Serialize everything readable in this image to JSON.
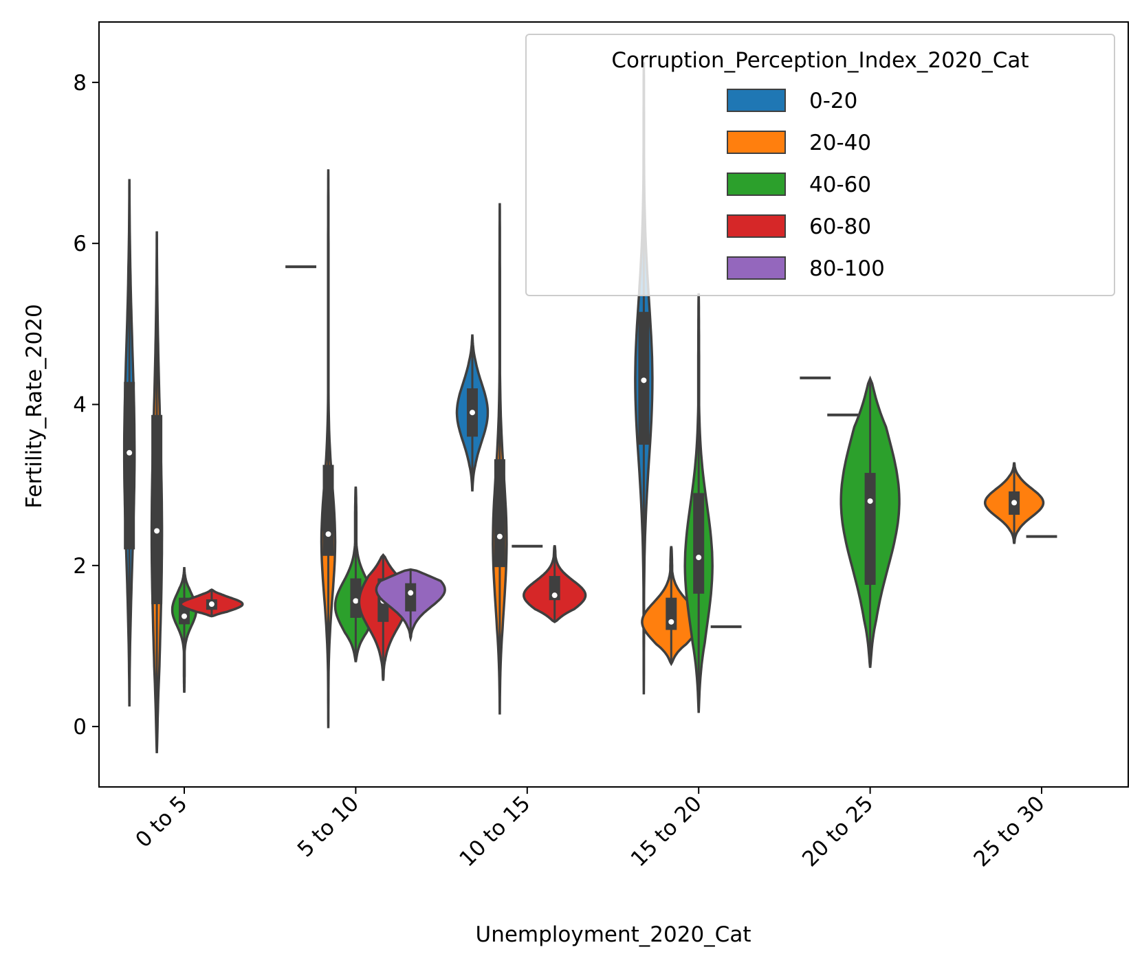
{
  "chart_data": {
    "type": "violin",
    "xlabel": "Unemployment_2020_Cat",
    "ylabel": "Fertility_Rate_2020",
    "categories": [
      "0 to 5",
      "5 to 10",
      "10 to 15",
      "15 to 20",
      "20 to 25",
      "25 to 30"
    ],
    "yticks": [
      "0",
      "2",
      "4",
      "6",
      "8"
    ],
    "ylim": [
      -0.75,
      8.75
    ],
    "legend": {
      "title": "Corruption_Perception_Index_2020_Cat",
      "placement": "top-right",
      "entries": [
        {
          "label": "0-20",
          "color": "#1f77b4"
        },
        {
          "label": "20-40",
          "color": "#ff7f0e"
        },
        {
          "label": "40-60",
          "color": "#2ca02c"
        },
        {
          "label": "60-80",
          "color": "#d62728"
        },
        {
          "label": "80-100",
          "color": "#9467bd"
        }
      ]
    },
    "hue_order": [
      "0-20",
      "20-40",
      "40-60",
      "60-80",
      "80-100"
    ],
    "violins": [
      {
        "category": "0 to 5",
        "hue": "0-20",
        "min": 0.25,
        "max": 6.8,
        "q1": 2.2,
        "median": 3.4,
        "q3": 4.28,
        "mode": 3.4,
        "width": 0.03
      },
      {
        "category": "0 to 5",
        "hue": "20-40",
        "min": -0.33,
        "max": 6.15,
        "q1": 1.52,
        "median": 2.43,
        "q3": 3.87,
        "mode": 2.4,
        "width": 0.03
      },
      {
        "category": "0 to 5",
        "hue": "40-60",
        "min": 0.42,
        "max": 1.98,
        "q1": 1.27,
        "median": 1.37,
        "q3": 1.6,
        "mode": 1.45,
        "width": 0.07
      },
      {
        "category": "0 to 5",
        "hue": "60-80",
        "min": 1.37,
        "max": 1.7,
        "q1": 1.45,
        "median": 1.52,
        "q3": 1.58,
        "mode": 1.52,
        "width": 0.18
      },
      {
        "category": "5 to 10",
        "hue": "0-20",
        "single": 5.71
      },
      {
        "category": "5 to 10",
        "hue": "20-40",
        "min": -0.02,
        "max": 6.92,
        "q1": 2.12,
        "median": 2.39,
        "q3": 3.25,
        "mode": 2.3,
        "width": 0.04
      },
      {
        "category": "5 to 10",
        "hue": "40-60",
        "min": 0.8,
        "max": 2.98,
        "q1": 1.35,
        "median": 1.56,
        "q3": 1.84,
        "mode": 1.5,
        "width": 0.12
      },
      {
        "category": "5 to 10",
        "hue": "60-80",
        "min": 0.57,
        "max": 2.13,
        "q1": 1.3,
        "median": 1.56,
        "q3": 1.84,
        "mode": 1.55,
        "width": 0.14
      },
      {
        "category": "5 to 10",
        "hue": "80-100",
        "min": 1.1,
        "max": 1.95,
        "q1": 1.43,
        "median": 1.66,
        "q3": 1.78,
        "mode": 1.7,
        "width": 0.2
      },
      {
        "category": "10 to 15",
        "hue": "0-20",
        "min": 2.92,
        "max": 4.87,
        "q1": 3.6,
        "median": 3.9,
        "q3": 4.2,
        "mode": 3.9,
        "width": 0.09
      },
      {
        "category": "10 to 15",
        "hue": "20-40",
        "min": 0.15,
        "max": 6.5,
        "q1": 1.98,
        "median": 2.36,
        "q3": 3.32,
        "mode": 2.3,
        "width": 0.04
      },
      {
        "category": "10 to 15",
        "hue": "40-60",
        "single": 2.24
      },
      {
        "category": "10 to 15",
        "hue": "60-80",
        "min": 1.3,
        "max": 2.25,
        "q1": 1.57,
        "median": 1.63,
        "q3": 1.87,
        "mode": 1.63,
        "width": 0.18
      },
      {
        "category": "15 to 20",
        "hue": "0-20",
        "min": 0.4,
        "max": 8.25,
        "q1": 3.5,
        "median": 4.3,
        "q3": 5.15,
        "mode": 4.3,
        "width": 0.05
      },
      {
        "category": "15 to 20",
        "hue": "20-40",
        "min": 0.78,
        "max": 2.24,
        "q1": 1.2,
        "median": 1.3,
        "q3": 1.6,
        "mode": 1.3,
        "width": 0.17
      },
      {
        "category": "15 to 20",
        "hue": "40-60",
        "min": 0.17,
        "max": 5.38,
        "q1": 1.65,
        "median": 2.1,
        "q3": 2.9,
        "mode": 2.0,
        "width": 0.08
      },
      {
        "category": "15 to 20",
        "hue": "60-80",
        "single": 1.24
      },
      {
        "category": "20 to 25",
        "hue": "0-20",
        "single": 4.33
      },
      {
        "category": "20 to 25",
        "hue": "20-40",
        "single": 3.87
      },
      {
        "category": "20 to 25",
        "hue": "40-60",
        "min": 0.73,
        "max": 4.32,
        "q1": 1.76,
        "median": 2.8,
        "q3": 3.15,
        "mode": 2.8,
        "width": 0.17
      },
      {
        "category": "25 to 30",
        "hue": "20-40",
        "min": 2.27,
        "max": 3.28,
        "q1": 2.63,
        "median": 2.78,
        "q3": 2.92,
        "mode": 2.78,
        "width": 0.17
      },
      {
        "category": "25 to 30",
        "hue": "40-60",
        "single": 2.36
      }
    ]
  }
}
